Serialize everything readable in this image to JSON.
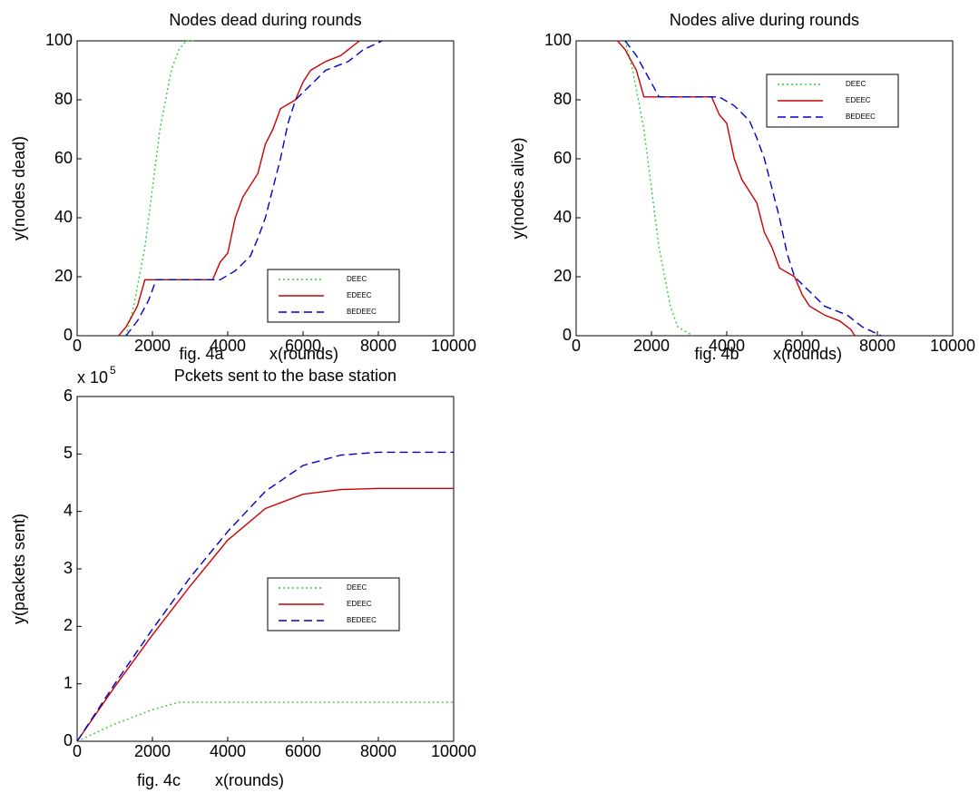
{
  "chart_data": [
    {
      "type": "line",
      "title": "Nodes dead during rounds",
      "caption": "fig. 4a",
      "xlabel": "x(rounds)",
      "ylabel": "y(nodes dead)",
      "xlim": [
        0,
        10000
      ],
      "xticks": [
        0,
        2000,
        4000,
        6000,
        8000,
        10000
      ],
      "ylim": [
        0,
        100
      ],
      "yticks": [
        0,
        20,
        40,
        60,
        80,
        100
      ],
      "legend": "lower right",
      "series": [
        {
          "name": "DEEC",
          "color": "#33cc33",
          "style": "dotted",
          "x": [
            1300,
            1500,
            1800,
            2000,
            2200,
            2500,
            2700,
            2900,
            3100
          ],
          "values": [
            0,
            10,
            30,
            50,
            70,
            90,
            97,
            100,
            100
          ]
        },
        {
          "name": "EDEEC",
          "color": "#cc0000",
          "style": "solid",
          "x": [
            1100,
            1300,
            1600,
            1800,
            3600,
            3800,
            4000,
            4200,
            4400,
            4600,
            4800,
            5000,
            5200,
            5400,
            5800,
            6000,
            6200,
            6600,
            7000,
            7300,
            7500
          ],
          "values": [
            0,
            3,
            10,
            19,
            19,
            25,
            28,
            40,
            47,
            51,
            55,
            65,
            70,
            77,
            80,
            86,
            90,
            93,
            95,
            98,
            100
          ]
        },
        {
          "name": "BEDEEC",
          "color": "#0000cc",
          "style": "dashed",
          "x": [
            1300,
            1600,
            1900,
            2100,
            3800,
            4200,
            4600,
            4800,
            5000,
            5200,
            5400,
            5600,
            5800,
            6200,
            6600,
            7200,
            7600,
            8100
          ],
          "values": [
            0,
            5,
            12,
            19,
            19,
            22,
            27,
            33,
            40,
            50,
            60,
            72,
            80,
            85,
            90,
            93,
            97,
            100
          ]
        }
      ]
    },
    {
      "type": "line",
      "title": "Nodes alive during rounds",
      "caption": "fig. 4b",
      "xlabel": "x(rounds)",
      "ylabel": "y(nodes alive)",
      "xlim": [
        0,
        10000
      ],
      "xticks": [
        0,
        2000,
        4000,
        6000,
        8000,
        10000
      ],
      "ylim": [
        0,
        100
      ],
      "yticks": [
        0,
        20,
        40,
        60,
        80,
        100
      ],
      "legend": "upper right",
      "series": [
        {
          "name": "DEEC",
          "color": "#33cc33",
          "style": "dotted",
          "x": [
            1300,
            1500,
            1800,
            2000,
            2200,
            2500,
            2700,
            3100
          ],
          "values": [
            100,
            90,
            70,
            50,
            30,
            10,
            3,
            0
          ]
        },
        {
          "name": "EDEEC",
          "color": "#cc0000",
          "style": "solid",
          "x": [
            1100,
            1300,
            1600,
            1800,
            3600,
            3800,
            4000,
            4200,
            4400,
            4600,
            4800,
            5000,
            5200,
            5400,
            5800,
            6000,
            6200,
            6600,
            7000,
            7300,
            7400
          ],
          "values": [
            100,
            97,
            90,
            81,
            81,
            75,
            72,
            60,
            53,
            49,
            45,
            35,
            30,
            23,
            20,
            14,
            10,
            7,
            5,
            2,
            0
          ]
        },
        {
          "name": "BEDEEC",
          "color": "#0000cc",
          "style": "dashed",
          "x": [
            1300,
            1600,
            1900,
            2200,
            3800,
            4200,
            4600,
            4800,
            5000,
            5200,
            5400,
            5600,
            5800,
            6200,
            6600,
            7200,
            7600,
            8100
          ],
          "values": [
            100,
            95,
            88,
            81,
            81,
            78,
            73,
            67,
            60,
            50,
            40,
            28,
            20,
            15,
            10,
            7,
            3,
            0
          ]
        }
      ]
    },
    {
      "type": "line",
      "title": "Pckets sent to the base station",
      "y_scale_label": "x 10",
      "y_scale_exponent": "5",
      "caption": "fig. 4c",
      "xlabel": "x(rounds)",
      "ylabel": "y(packets sent)",
      "xlim": [
        0,
        10000
      ],
      "xticks": [
        0,
        2000,
        4000,
        6000,
        8000,
        10000
      ],
      "ylim": [
        0,
        6
      ],
      "yticks": [
        0,
        1,
        2,
        3,
        4,
        5,
        6
      ],
      "legend": "center right",
      "series": [
        {
          "name": "DEEC",
          "color": "#33cc33",
          "style": "dotted",
          "x": [
            0,
            1000,
            2000,
            2700,
            4000,
            10000
          ],
          "values": [
            0,
            0.3,
            0.55,
            0.68,
            0.68,
            0.68
          ]
        },
        {
          "name": "EDEEC",
          "color": "#cc0000",
          "style": "solid",
          "x": [
            0,
            1000,
            2000,
            3000,
            4000,
            5000,
            6000,
            7000,
            8000,
            10000
          ],
          "values": [
            0,
            0.95,
            1.85,
            2.7,
            3.5,
            4.05,
            4.3,
            4.38,
            4.4,
            4.4
          ]
        },
        {
          "name": "BEDEEC",
          "color": "#0000cc",
          "style": "dashed",
          "x": [
            0,
            1000,
            2000,
            3000,
            4000,
            5000,
            6000,
            7000,
            8000,
            10000
          ],
          "values": [
            0,
            1.0,
            1.95,
            2.85,
            3.65,
            4.35,
            4.8,
            4.98,
            5.03,
            5.03
          ]
        }
      ]
    }
  ]
}
